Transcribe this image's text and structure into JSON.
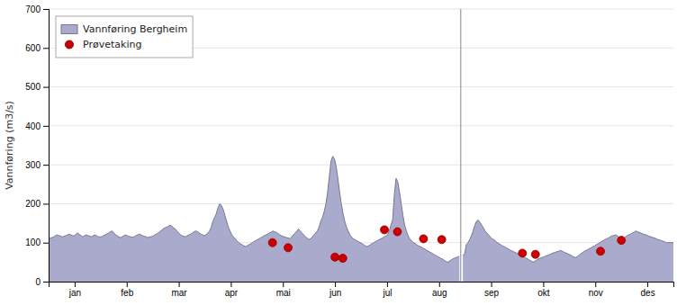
{
  "chart_data": {
    "type": "area",
    "ylabel": "Vannføring (m3/s)",
    "xlim": [
      0,
      12
    ],
    "xticks": [
      {
        "value": 0.5,
        "label": "jan"
      },
      {
        "value": 1.5,
        "label": "feb"
      },
      {
        "value": 2.5,
        "label": "mar"
      },
      {
        "value": 3.5,
        "label": "apr"
      },
      {
        "value": 4.5,
        "label": "mai"
      },
      {
        "value": 5.5,
        "label": "jun"
      },
      {
        "value": 6.5,
        "label": "jul"
      },
      {
        "value": 7.5,
        "label": "aug"
      },
      {
        "value": 8.5,
        "label": "sep"
      },
      {
        "value": 9.5,
        "label": "okt"
      },
      {
        "value": 10.5,
        "label": "nov"
      },
      {
        "value": 11.5,
        "label": "des"
      }
    ],
    "ylim": [
      0,
      700
    ],
    "yticks": [
      0,
      100,
      200,
      300,
      400,
      500,
      600,
      700
    ],
    "grid": true,
    "legend": "upper left",
    "gap_x": 7.916,
    "series": [
      {
        "name": "Vannføring Bergheim",
        "type": "area",
        "color": "#aaaacc",
        "values": [
          110,
          112,
          113,
          115,
          118,
          120,
          118,
          117,
          115,
          116,
          118,
          120,
          122,
          120,
          118,
          118,
          122,
          125,
          121,
          118,
          115,
          118,
          120,
          118,
          117,
          115,
          118,
          120,
          118,
          115,
          115,
          115,
          118,
          120,
          122,
          125,
          128,
          130,
          126,
          120,
          118,
          115,
          113,
          115,
          118,
          120,
          118,
          116,
          115,
          114,
          115,
          118,
          120,
          122,
          120,
          118,
          116,
          115,
          113,
          115,
          115,
          117,
          120,
          122,
          125,
          128,
          132,
          136,
          138,
          140,
          142,
          145,
          142,
          138,
          135,
          130,
          125,
          120,
          118,
          116,
          115,
          118,
          120,
          122,
          125,
          128,
          130,
          128,
          125,
          122,
          120,
          118,
          120,
          125,
          130,
          140,
          155,
          165,
          175,
          190,
          200,
          195,
          185,
          170,
          155,
          140,
          130,
          120,
          115,
          110,
          105,
          100,
          97,
          95,
          92,
          90,
          92,
          95,
          97,
          100,
          103,
          105,
          108,
          110,
          113,
          115,
          118,
          120,
          122,
          125,
          127,
          130,
          128,
          126,
          124,
          120,
          118,
          116,
          115,
          113,
          112,
          110,
          115,
          120,
          125,
          130,
          135,
          130,
          125,
          120,
          115,
          112,
          108,
          110,
          115,
          120,
          125,
          130,
          140,
          155,
          165,
          180,
          200,
          230,
          270,
          310,
          322,
          315,
          295,
          265,
          230,
          200,
          175,
          155,
          140,
          130,
          120,
          115,
          110,
          108,
          105,
          103,
          100,
          98,
          95,
          92,
          90,
          92,
          95,
          98,
          100,
          103,
          105,
          108,
          110,
          112,
          115,
          117,
          120,
          130,
          145,
          160,
          225,
          265,
          255,
          230,
          200,
          170,
          145,
          130,
          118,
          110,
          105,
          100,
          98,
          95,
          92,
          90,
          88,
          85,
          83,
          80,
          78,
          75,
          73,
          70,
          68,
          65,
          63,
          60,
          58,
          55,
          52,
          50,
          52,
          55,
          58,
          60,
          62,
          63,
          65,
          null,
          68,
          70,
          95,
          100,
          108,
          118,
          130,
          145,
          155,
          158,
          152,
          145,
          138,
          130,
          125,
          120,
          115,
          110,
          108,
          105,
          100,
          98,
          95,
          92,
          90,
          88,
          85,
          83,
          80,
          78,
          76,
          74,
          72,
          70,
          68,
          65,
          63,
          60,
          58,
          55,
          53,
          50,
          52,
          55,
          58,
          60,
          62,
          63,
          65,
          67,
          68,
          70,
          72,
          74,
          75,
          77,
          78,
          80,
          78,
          76,
          74,
          72,
          70,
          68,
          65,
          63,
          62,
          65,
          68,
          72,
          75,
          78,
          80,
          82,
          85,
          87,
          90,
          92,
          95,
          97,
          100,
          103,
          105,
          108,
          110,
          112,
          115,
          117,
          118,
          120,
          118,
          115,
          113,
          110,
          112,
          115,
          118,
          120,
          122,
          125,
          127,
          130,
          128,
          126,
          125,
          123,
          121,
          120,
          118,
          116,
          115,
          113,
          112,
          110,
          108,
          107,
          105,
          104,
          102,
          100,
          100,
          100,
          100,
          100
        ]
      },
      {
        "name": "Prøvetaking",
        "type": "scatter",
        "color": "#cc0000",
        "x": [
          4.3,
          4.6,
          5.5,
          5.65,
          6.45,
          6.7,
          7.2,
          7.55,
          9.1,
          9.35,
          10.6,
          11.0
        ],
        "values": [
          100,
          87,
          63,
          60,
          133,
          128,
          110,
          108,
          73,
          70,
          78,
          106
        ]
      }
    ]
  }
}
